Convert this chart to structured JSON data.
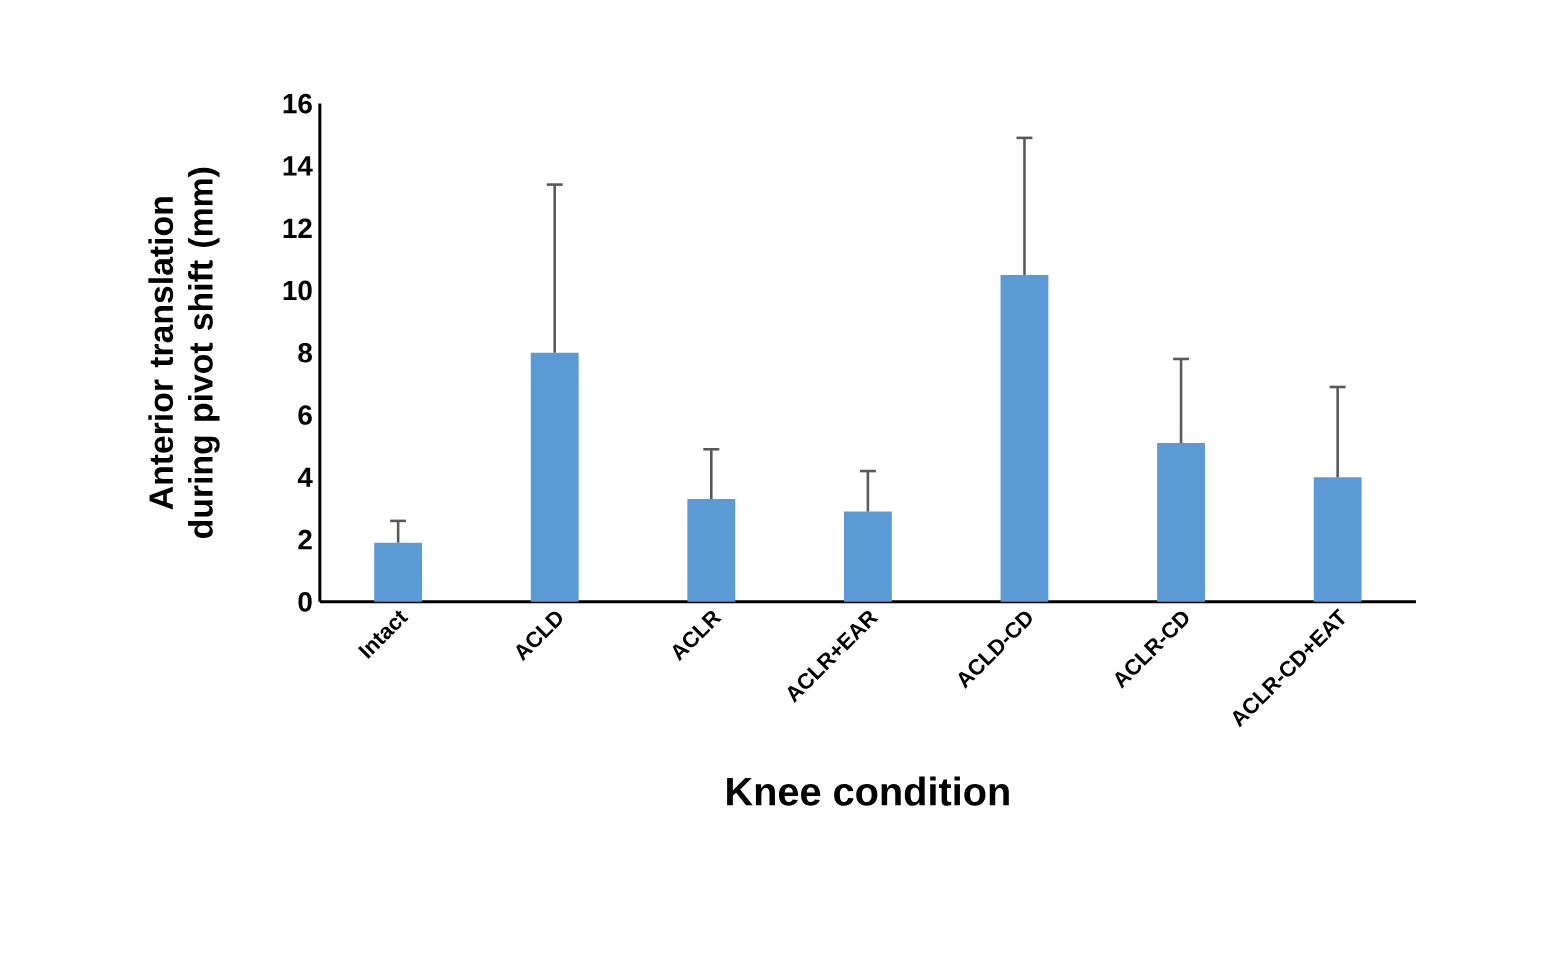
{
  "chart_data": {
    "type": "bar",
    "categories": [
      "Intact",
      "ACLD",
      "ACLR",
      "ACLR+EAR",
      "ACLD-CD",
      "ACLR-CD",
      "ACLR-CD+EAT"
    ],
    "values": [
      1.9,
      8.0,
      3.3,
      2.9,
      10.5,
      5.1,
      4.0
    ],
    "errors": [
      [
        1.9,
        2.6
      ],
      [
        8.0,
        13.4
      ],
      [
        3.3,
        4.9
      ],
      [
        2.9,
        4.2
      ],
      [
        10.5,
        14.9
      ],
      [
        5.1,
        7.8
      ],
      [
        4.0,
        6.9
      ]
    ],
    "color": "#5b9bd5",
    "ylim": [
      0,
      16
    ],
    "yticks": [
      0,
      2,
      4,
      6,
      8,
      10,
      12,
      14,
      16
    ],
    "xlabel": "Knee condition",
    "ylabel": "Anterior translation during pivot shift (mm)",
    "grid": false
  }
}
